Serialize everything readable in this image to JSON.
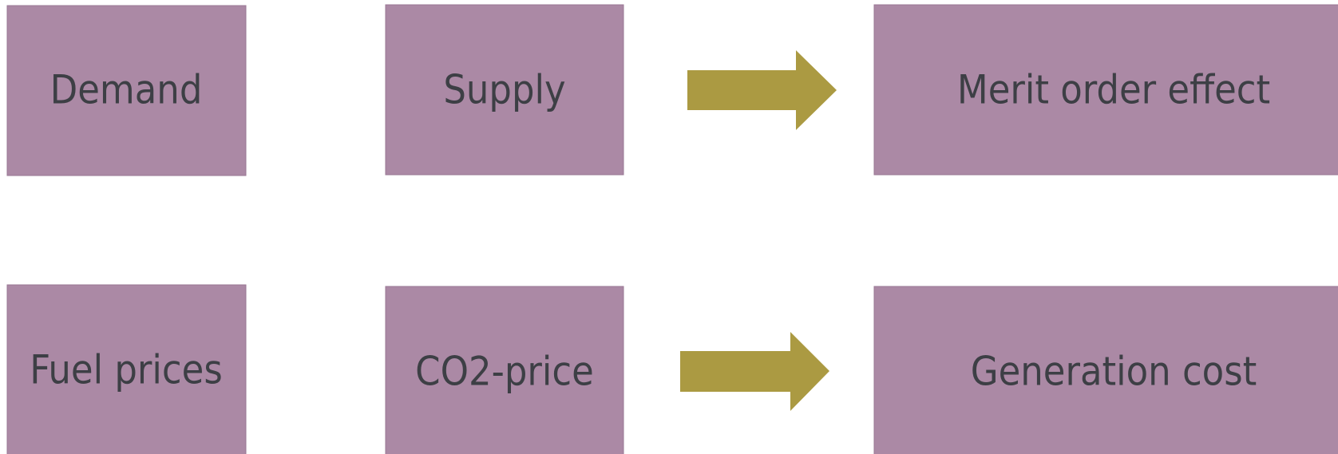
{
  "nodes": [
    {
      "label": "Demand"
    },
    {
      "label": "Supply"
    },
    {
      "label": "Merit order effect"
    },
    {
      "label": "Fuel prices"
    },
    {
      "label": "CO2-price"
    },
    {
      "label": "Generation cost"
    }
  ]
}
